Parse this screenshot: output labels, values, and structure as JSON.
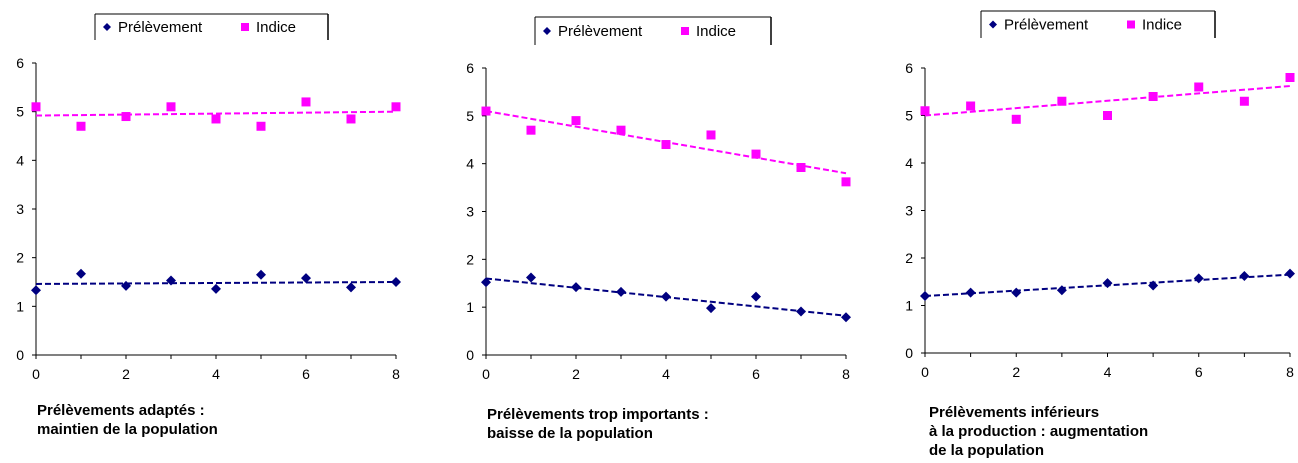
{
  "colors": {
    "prelevement": "#000080",
    "indice": "#ff00ff"
  },
  "legend": {
    "series1": "Prélèvement",
    "series2": "Indice"
  },
  "chart_data": [
    {
      "type": "scatter",
      "title": "",
      "caption": [
        "Prélèvements adaptés :",
        "maintien de la population"
      ],
      "xlim": [
        0,
        8
      ],
      "ylim": [
        0,
        6
      ],
      "x_ticks": [
        "0",
        "2",
        "4",
        "6",
        "8"
      ],
      "y_ticks": [
        "0",
        "1",
        "2",
        "3",
        "4",
        "5",
        "6"
      ],
      "legend_position": "top",
      "x": [
        0,
        1,
        2,
        3,
        4,
        5,
        6,
        7,
        8
      ],
      "series": [
        {
          "name": "Prélèvement",
          "marker": "diamond",
          "values": [
            1.33,
            1.67,
            1.42,
            1.53,
            1.36,
            1.65,
            1.58,
            1.39,
            1.5
          ],
          "trend": [
            1.46,
            1.5
          ]
        },
        {
          "name": "Indice",
          "marker": "square",
          "values": [
            5.1,
            4.7,
            4.9,
            5.1,
            4.85,
            4.7,
            5.2,
            4.85,
            5.1
          ],
          "trend": [
            4.92,
            5.0
          ]
        }
      ]
    },
    {
      "type": "scatter",
      "title": "",
      "caption": [
        "Prélèvements trop importants :",
        "baisse de la population"
      ],
      "xlim": [
        0,
        8
      ],
      "ylim": [
        0,
        6
      ],
      "x_ticks": [
        "0",
        "2",
        "4",
        "6",
        "8"
      ],
      "y_ticks": [
        "0",
        "1",
        "2",
        "3",
        "4",
        "5",
        "6"
      ],
      "legend_position": "top",
      "x": [
        0,
        1,
        2,
        3,
        4,
        5,
        6,
        7,
        8
      ],
      "series": [
        {
          "name": "Prélèvement",
          "marker": "diamond",
          "values": [
            1.52,
            1.62,
            1.42,
            1.32,
            1.22,
            0.98,
            1.22,
            0.91,
            0.79
          ],
          "trend": [
            1.6,
            0.82
          ]
        },
        {
          "name": "Indice",
          "marker": "square",
          "values": [
            5.1,
            4.7,
            4.9,
            4.7,
            4.4,
            4.6,
            4.2,
            3.92,
            3.62
          ],
          "trend": [
            5.1,
            3.8
          ]
        }
      ]
    },
    {
      "type": "scatter",
      "title": "",
      "caption": [
        "Prélèvements inférieurs",
        "à la production : augmentation",
        "de la population"
      ],
      "xlim": [
        0,
        8
      ],
      "ylim": [
        0,
        6
      ],
      "x_ticks": [
        "0",
        "2",
        "4",
        "6",
        "8"
      ],
      "y_ticks": [
        "0",
        "1",
        "2",
        "3",
        "4",
        "5",
        "6"
      ],
      "legend_position": "top",
      "x": [
        0,
        1,
        2,
        3,
        4,
        5,
        6,
        7,
        8
      ],
      "series": [
        {
          "name": "Prélèvement",
          "marker": "diamond",
          "values": [
            1.2,
            1.27,
            1.27,
            1.32,
            1.47,
            1.42,
            1.57,
            1.62,
            1.67
          ],
          "trend": [
            1.2,
            1.65
          ]
        },
        {
          "name": "Indice",
          "marker": "square",
          "values": [
            5.1,
            5.2,
            4.92,
            5.3,
            5.0,
            5.4,
            5.6,
            5.3,
            5.8
          ],
          "trend": [
            5.0,
            5.62
          ]
        }
      ]
    }
  ]
}
